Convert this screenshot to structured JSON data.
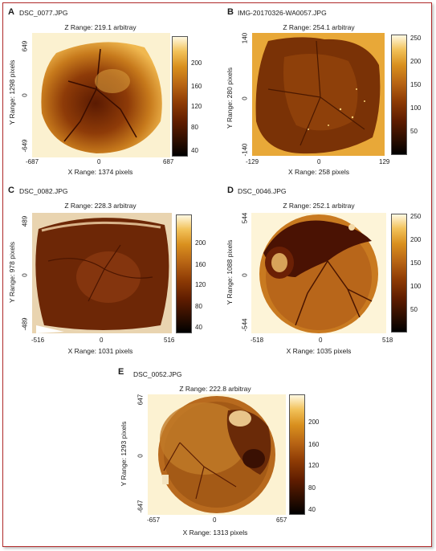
{
  "panels": [
    {
      "letter": "A",
      "filename": "DSC_0077.JPG",
      "z_range": "Z Range: 219.1 arbitray",
      "x_range": "X Range: 1374 pixels",
      "y_range": "Y Range: 1298 pixels",
      "x_ticks": [
        "-687",
        "0",
        "687"
      ],
      "y_ticks": [
        "649",
        "0",
        "-649"
      ],
      "colorbar_ticks": [
        "200",
        "160",
        "120",
        "80",
        "40"
      ]
    },
    {
      "letter": "B",
      "filename": "IMG-20170326-WA0057.JPG",
      "z_range": "Z Range: 254.1 arbitray",
      "x_range": "X Range: 258 pixels",
      "y_range": "Y Range: 280 pixels",
      "x_ticks": [
        "-129",
        "0",
        "129"
      ],
      "y_ticks": [
        "140",
        "0",
        "-140"
      ],
      "colorbar_ticks": [
        "250",
        "200",
        "150",
        "100",
        "50"
      ]
    },
    {
      "letter": "C",
      "filename": "DSC_0082.JPG",
      "z_range": "Z Range: 228.3 arbitray",
      "x_range": "X Range: 1031 pixels",
      "y_range": "Y Range: 978 pixels",
      "x_ticks": [
        "-516",
        "0",
        "516"
      ],
      "y_ticks": [
        "489",
        "0",
        "-489"
      ],
      "colorbar_ticks": [
        "200",
        "160",
        "120",
        "80",
        "40"
      ]
    },
    {
      "letter": "D",
      "filename": "DSC_0046.JPG",
      "z_range": "Z Range: 252.1 arbitray",
      "x_range": "X Range: 1035 pixels",
      "y_range": "Y Range: 1088 pixels",
      "x_ticks": [
        "-518",
        "0",
        "518"
      ],
      "y_ticks": [
        "544",
        "0",
        "-544"
      ],
      "colorbar_ticks": [
        "250",
        "200",
        "150",
        "100",
        "50"
      ]
    },
    {
      "letter": "E",
      "filename": "DSC_0052.JPG",
      "z_range": "Z Range: 222.8 arbitray",
      "x_range": "X Range: 1313 pixels",
      "y_range": "Y Range: 1293 pixels",
      "x_ticks": [
        "-657",
        "0",
        "657"
      ],
      "y_ticks": [
        "647",
        "0",
        "-647"
      ],
      "colorbar_ticks": [
        "200",
        "160",
        "120",
        "80",
        "40"
      ]
    }
  ]
}
